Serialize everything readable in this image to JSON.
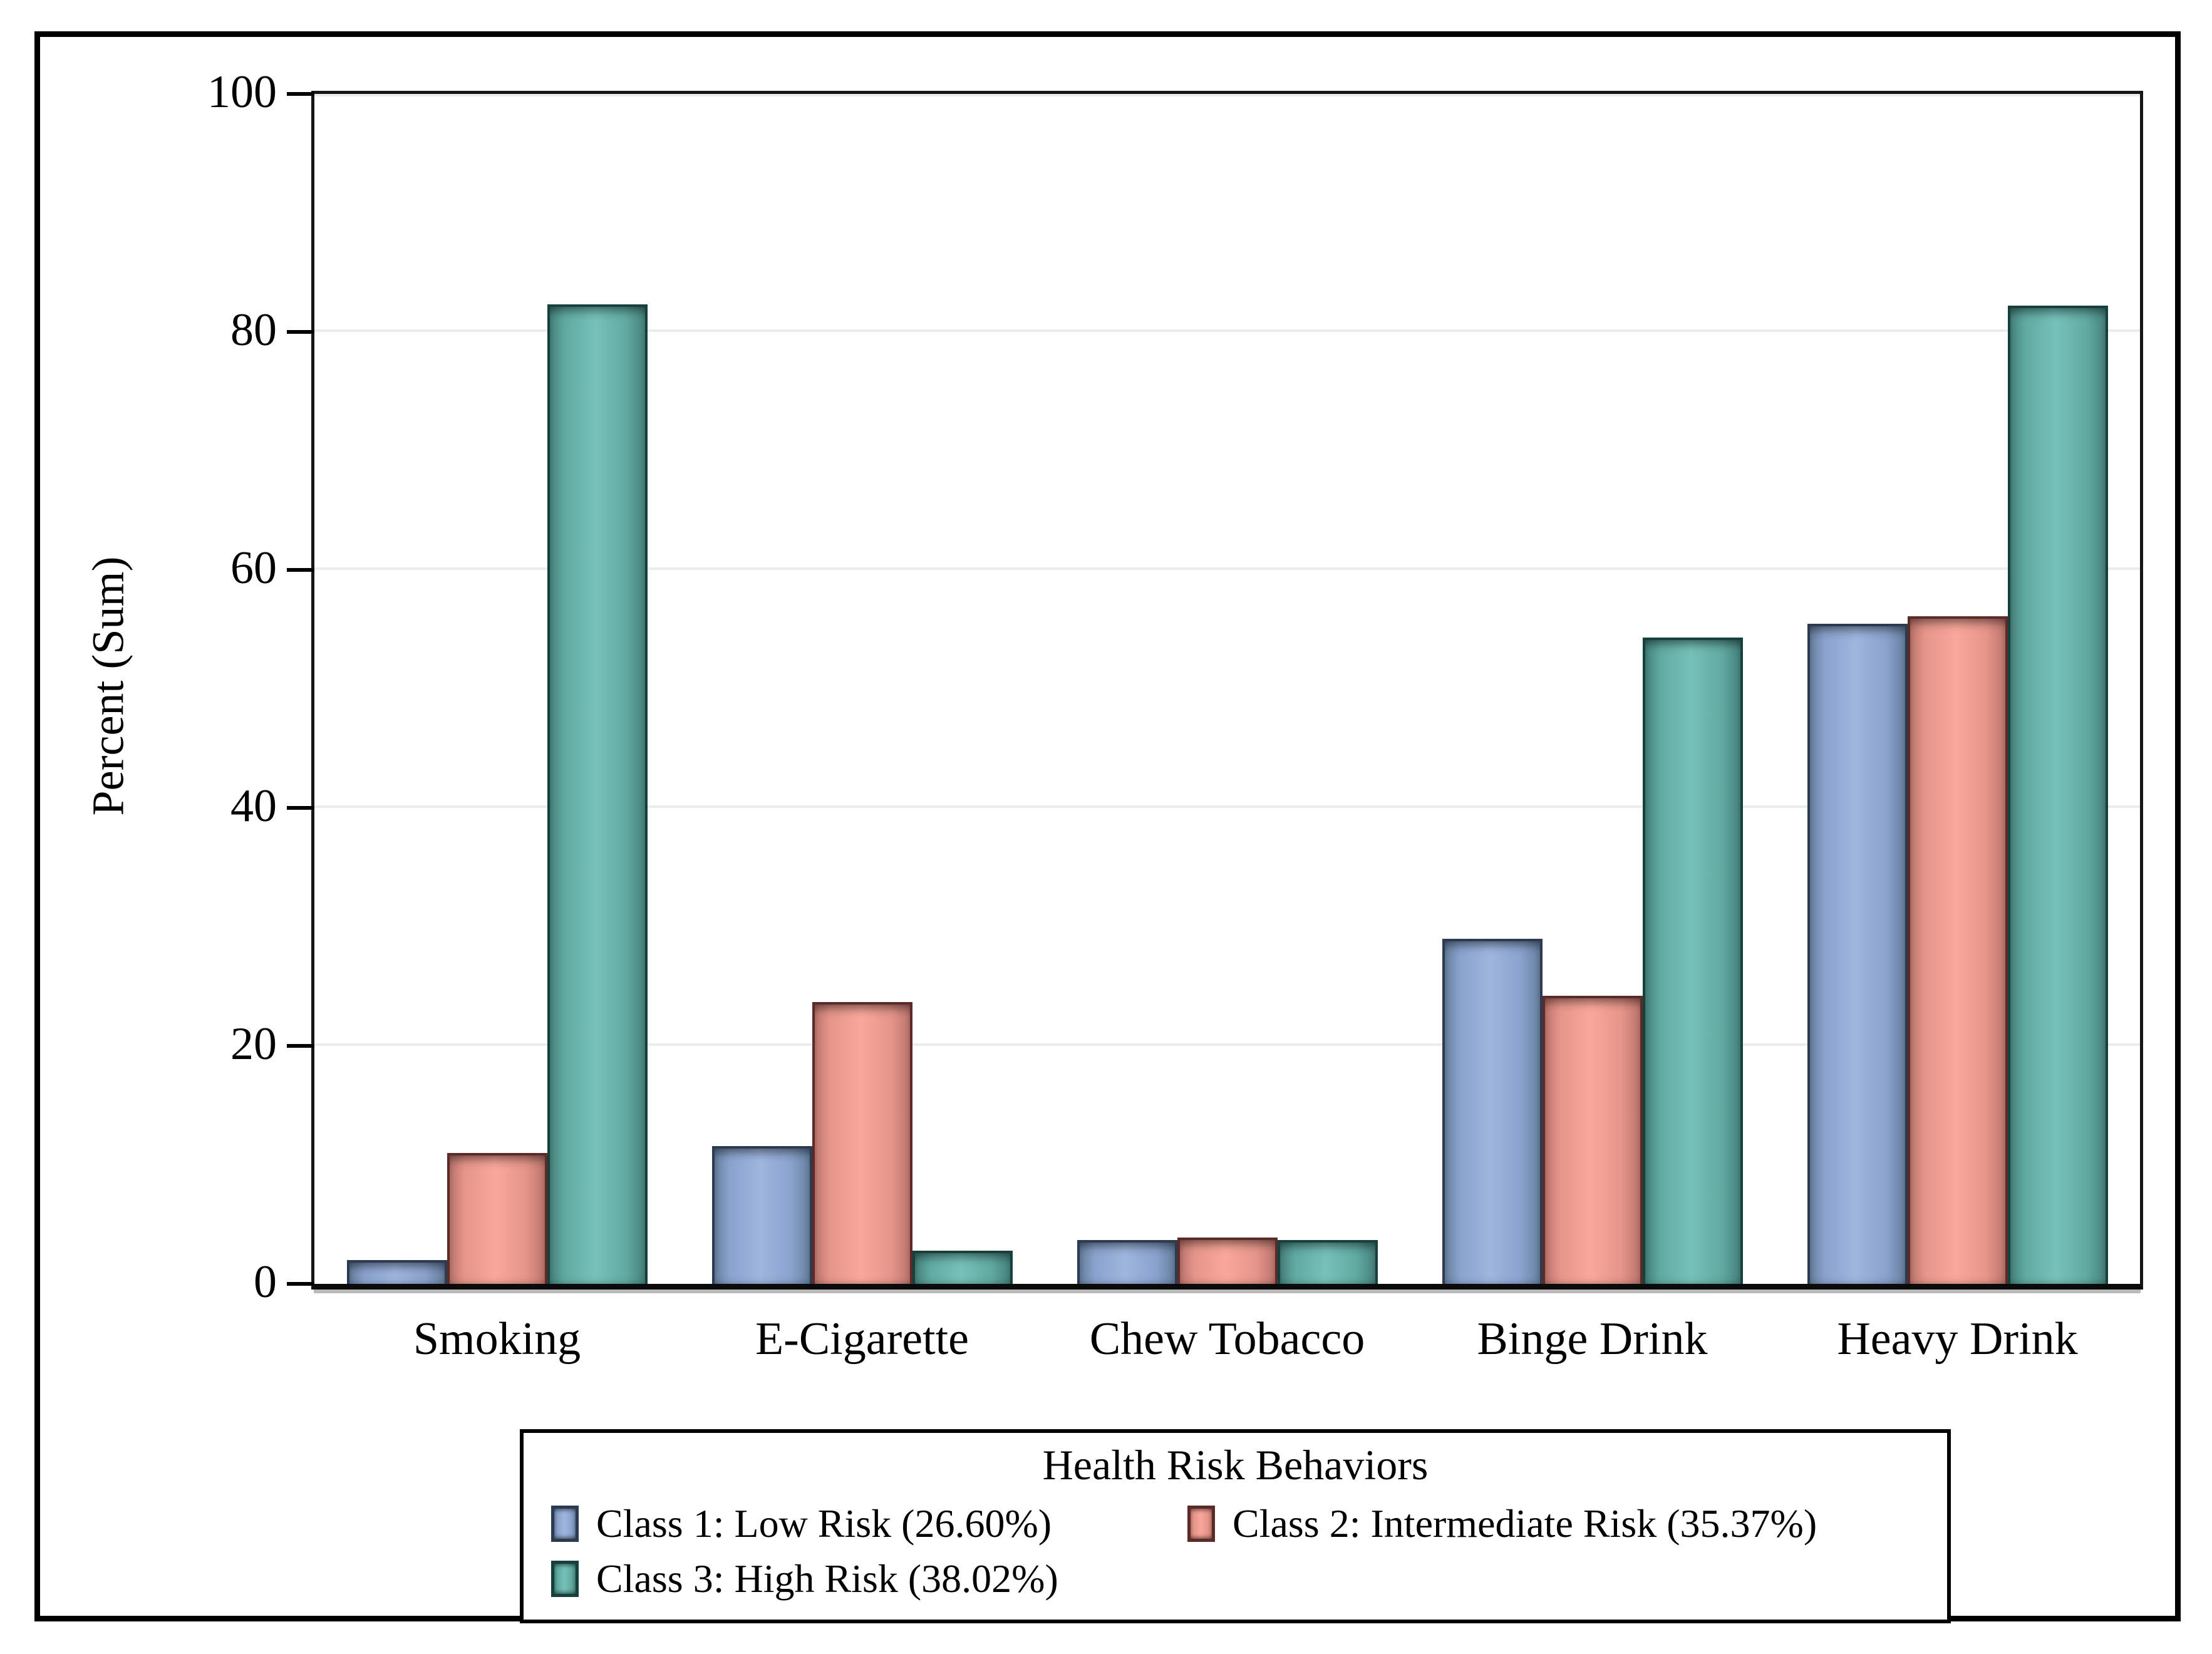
{
  "figure": {
    "background": "#ffffff",
    "frame_color": "#000000",
    "gridline_color": "#ececec"
  },
  "y_axis": {
    "title": "Percent (Sum)",
    "tick_values": [
      0,
      20,
      40,
      60,
      80,
      100
    ]
  },
  "legend": {
    "title": "Health Risk Behaviors",
    "items": [
      {
        "label": "Class 1: Low Risk (26.60%)"
      },
      {
        "label": "Class 2: Intermediate Risk (35.37%)"
      },
      {
        "label": "Class 3: High Risk (38.02%)"
      }
    ]
  },
  "chart_data": {
    "type": "bar",
    "title": "",
    "xlabel": "Health Risk Behaviors",
    "ylabel": "Percent (Sum)",
    "ylim": [
      0,
      100
    ],
    "grid": true,
    "legend_position": "bottom",
    "categories": [
      "Smoking",
      "E-Cigarette",
      "Chew Tobacco",
      "Binge Drink",
      "Heavy Drink"
    ],
    "series": [
      {
        "name": "Class 1: Low Risk (26.60%)",
        "values": [
          2.0,
          11.6,
          3.7,
          29.0,
          55.5
        ],
        "colors": {
          "light": "#9fb6de",
          "mid": "#8aa3cd",
          "edge": "#67809f",
          "border": "#2c3a52"
        }
      },
      {
        "name": "Class 2: Intermediate Risk (35.37%)",
        "values": [
          11.0,
          23.7,
          3.9,
          24.2,
          56.1
        ],
        "colors": {
          "light": "#f9a79a",
          "mid": "#e6958a",
          "edge": "#bd766d",
          "border": "#5d2b27"
        }
      },
      {
        "name": "Class 3: High Risk (38.02%)",
        "values": [
          82.3,
          2.8,
          3.7,
          54.3,
          82.2
        ],
        "colors": {
          "light": "#76c1b9",
          "mid": "#60aaa2",
          "edge": "#47837c",
          "border": "#16403c"
        }
      }
    ]
  }
}
